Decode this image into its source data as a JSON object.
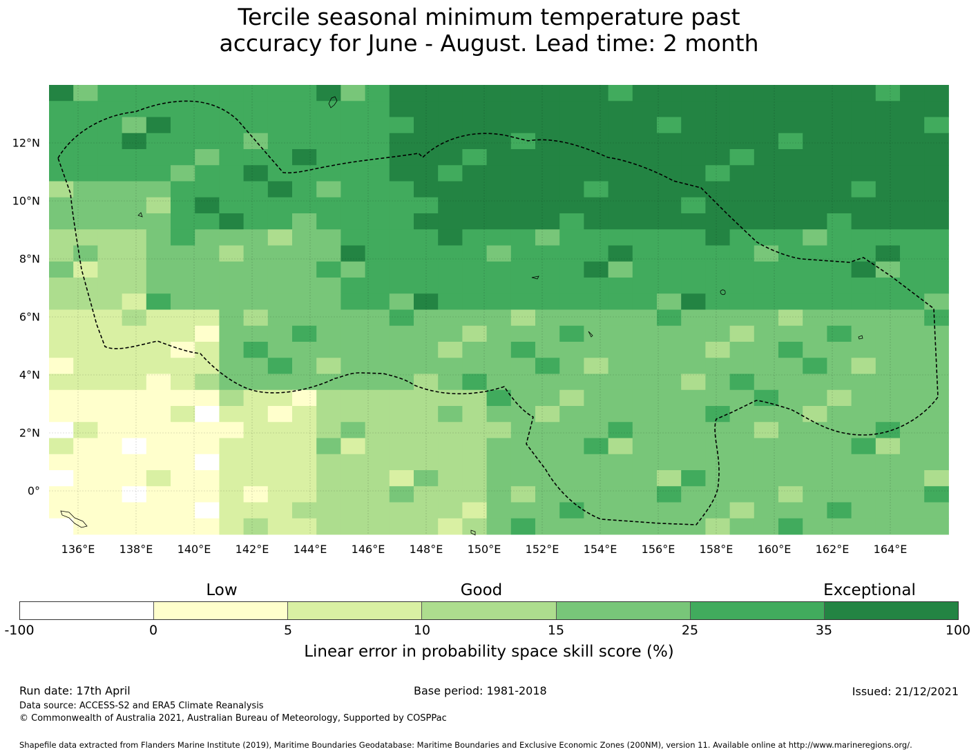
{
  "title_line1": "Tercile seasonal minimum temperature past",
  "title_line2": "accuracy for June - August. Lead time: 2 month",
  "map": {
    "lon_labels": [
      "136°E",
      "138°E",
      "140°E",
      "142°E",
      "144°E",
      "146°E",
      "148°E",
      "150°E",
      "152°E",
      "154°E",
      "156°E",
      "158°E",
      "160°E",
      "162°E",
      "164°E"
    ],
    "lat_labels": [
      "12°N",
      "10°N",
      "8°N",
      "6°N",
      "4°N",
      "2°N",
      "0°"
    ],
    "grid_colors": [
      "#ffffff",
      "#ffffcc",
      "#d9f0a3",
      "#addd8e",
      "#78c679",
      "#41ab5d",
      "#238443"
    ]
  },
  "colorbar": {
    "category_labels": [
      "Low",
      "Good",
      "Exceptional"
    ],
    "tick_labels": [
      "-100",
      "0",
      "5",
      "10",
      "15",
      "25",
      "35",
      "100"
    ],
    "title": "Linear error in probability space skill score (%)"
  },
  "footer": {
    "run_date": "Run date: 17th April",
    "base_period": "Base period: 1981-2018",
    "issued": "Issued: 21/12/2021",
    "data_source": "Data source: ACCESS-S2 and ERA5 Climate Reanalysis",
    "copyright": "© Commonwealth of Australia 2021, Australian Bureau of Meteorology, Supported by COSPPac",
    "shapefile": "Shapefile data extracted from Flanders Marine Institute (2019), Maritime Boundaries Geodatabase: Maritime Boundaries and Exclusive Economic Zones (200NM), version 11. Available online at http://www.marineregions.org/."
  }
}
